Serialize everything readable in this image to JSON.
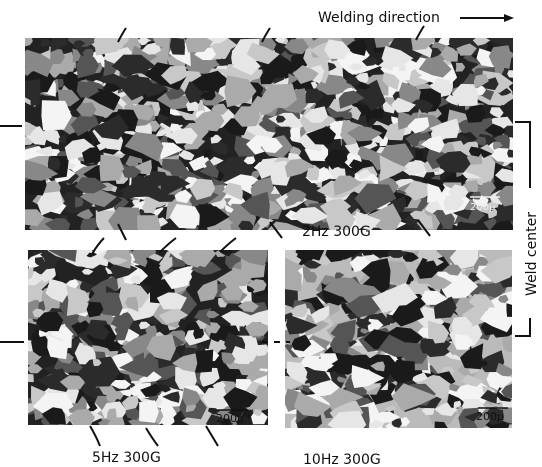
{
  "header": {
    "direction_label": "Welding direction"
  },
  "panels": [
    {
      "label": "2Hz 300G",
      "scale_bar": "200μ"
    },
    {
      "label": "5Hz 300G",
      "scale_bar": "200μ"
    },
    {
      "label": "10Hz 300G",
      "scale_bar": "200μ"
    }
  ],
  "side_label": "Weld center"
}
